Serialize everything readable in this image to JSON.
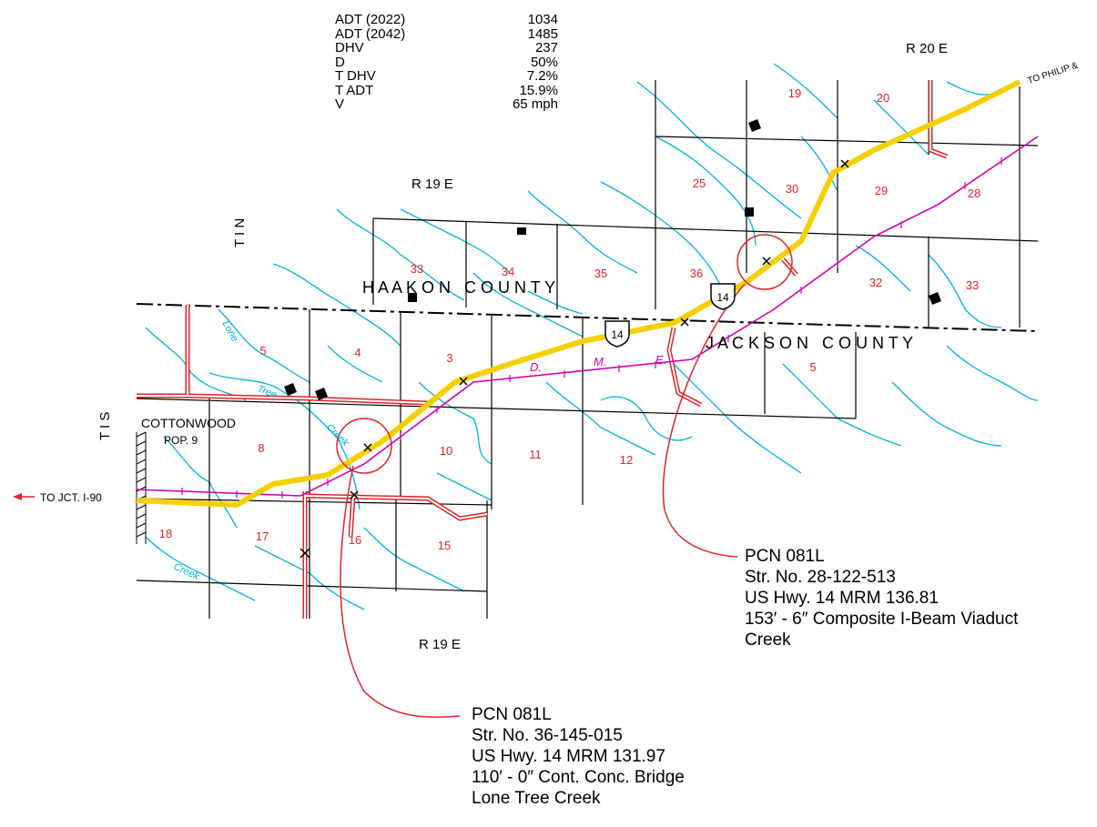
{
  "traffic_data": [
    {
      "label": "ADT (2022)",
      "value": "1034"
    },
    {
      "label": "ADT (2042)",
      "value": "1485"
    },
    {
      "label": "DHV",
      "value": "237"
    },
    {
      "label": "D",
      "value": "50%"
    },
    {
      "label": "T DHV",
      "value": "7.2%"
    },
    {
      "label": "T ADT",
      "value": "15.9%"
    },
    {
      "label": "V",
      "value": "65 mph"
    }
  ],
  "map_labels": {
    "range_r20e": "R 20 E",
    "range_r19e_top": "R 19 E",
    "range_r19e_bottom": "R 19 E",
    "township_tin": "T I N",
    "township_tis": "T I S",
    "to_philip": "TO PHILIP &",
    "to_jct": "TO JCT. I-90",
    "haakon_county": "H A A K O N   C O U N T Y",
    "jackson_county": "J A C K S O N   C O U N T Y",
    "town_name": "COTTONWOOD",
    "town_pop": "POP. 9",
    "railroad_d": "D.",
    "railroad_m": "M.",
    "railroad_e": "E.",
    "route_shield_1": "14",
    "route_shield_2": "14",
    "creek_lone": "Lone",
    "creek_tree": "Tree",
    "creek_creek_1": "Creek",
    "creek_creek_2": "Creek"
  },
  "sections": [
    "19",
    "20",
    "25",
    "30",
    "29",
    "28",
    "33",
    "34",
    "35",
    "36",
    "32",
    "33",
    "5",
    "4",
    "3",
    "5",
    "8",
    "10",
    "11",
    "12",
    "18",
    "17",
    "16",
    "15"
  ],
  "callouts": [
    {
      "lines": [
        "PCN 081L",
        "Str. No. 28-122-513",
        "US Hwy. 14   MRM 136.81",
        "153′ - 6″ Composite I-Beam Viaduct",
        "Creek"
      ]
    },
    {
      "lines": [
        "PCN 081L",
        "Str. No. 36-145-015",
        "US Hwy. 14   MRM 131.97",
        "110′ - 0″ Cont. Conc. Bridge",
        "Lone Tree Creek"
      ]
    }
  ],
  "colors": {
    "highway": "#f5d000",
    "railroad": "#d400b0",
    "creek": "#00b4d8",
    "road": "#e0242a",
    "section_number": "#e0242a",
    "callout_line": "#e0242a"
  }
}
